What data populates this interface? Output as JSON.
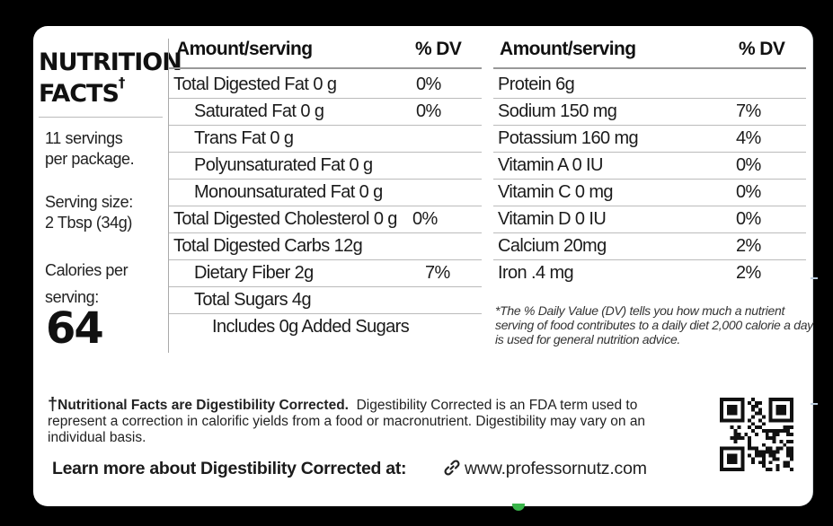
{
  "side": {
    "title_line1": "NUTRITION",
    "title_line2": "FACTS",
    "dagger": "†",
    "servings_line1": "11 servings",
    "servings_line2": "per package.",
    "serving_size_line1": "Serving size:",
    "serving_size_line2": "2 Tbsp (34g)",
    "calories_line1": "Calories per",
    "calories_line2": "serving:",
    "calories_value": "64"
  },
  "left_table": {
    "header_amount": "Amount/serving",
    "header_dv": "% DV",
    "rows": [
      {
        "name": "Total Digested Fat 0 g",
        "dv": "0%"
      },
      {
        "name": "Saturated Fat 0 g",
        "dv": "0%"
      },
      {
        "name": "Trans Fat 0 g",
        "dv": ""
      },
      {
        "name": "Polyunsaturated Fat 0 g",
        "dv": ""
      },
      {
        "name": "Monounsaturated Fat 0 g",
        "dv": ""
      },
      {
        "name": "Total Digested Cholesterol 0 g",
        "dv": "0%"
      },
      {
        "name": "Total Digested Carbs  12g",
        "dv": ""
      },
      {
        "name": "Dietary Fiber 2g",
        "dv": "7%"
      },
      {
        "name": "Total Sugars  4g",
        "dv": ""
      },
      {
        "name": "Includes 0g Added Sugars",
        "dv": ""
      }
    ]
  },
  "right_table": {
    "header_amount": "Amount/serving",
    "header_dv": "% DV",
    "rows": [
      {
        "name": "Protein  6g",
        "dv": ""
      },
      {
        "name": "Sodium 150 mg",
        "dv": "7%"
      },
      {
        "name": "Potassium 160 mg",
        "dv": "4%"
      },
      {
        "name": "Vitamin A 0 IU",
        "dv": "0%"
      },
      {
        "name": "Vitamin C 0 mg",
        "dv": "0%"
      },
      {
        "name": "Vitamin D 0 IU",
        "dv": "0%"
      },
      {
        "name": "Calcium 20mg",
        "dv": "2%"
      },
      {
        "name": "Iron  .4 mg",
        "dv": "2%"
      }
    ],
    "note": "*The % Daily Value (DV) tells you how much a nutrient serving of food contributes to a daily diet 2,000 calorie a day is used for general nutrition advice."
  },
  "footer": {
    "dagger": "†",
    "bold_text": "Nutritional Facts are Digestibility Corrected.",
    "body_text": "Digestibility Corrected is an FDA term used to represent a correction in calorific yields from a food or macronutrient. Digestibility may vary on an individual basis.",
    "learn_more": "Learn more about Digestibility Corrected at:",
    "url": "www.professornutz.com",
    "link_icon": "link-icon",
    "qr_icon": "qr-code-icon"
  }
}
